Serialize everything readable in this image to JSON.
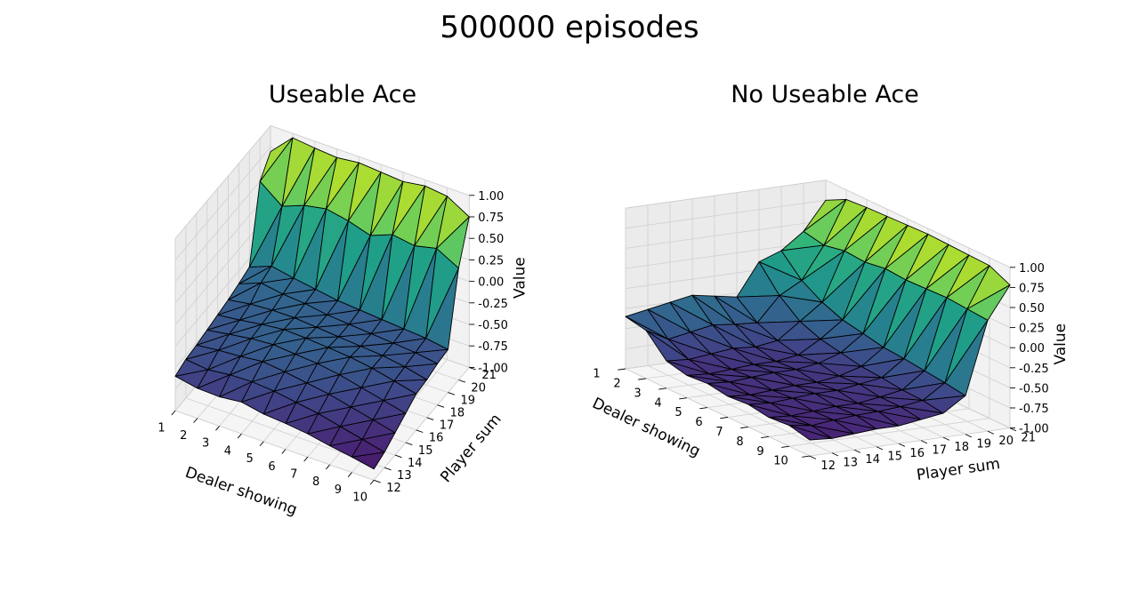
{
  "figure_title": "500000 episodes",
  "chart_data": [
    {
      "type": "surface3d",
      "title": "Useable Ace",
      "xlabel": "Dealer showing",
      "ylabel": "Player sum",
      "zlabel": "Value",
      "x": [
        1,
        2,
        3,
        4,
        5,
        6,
        7,
        8,
        9,
        10
      ],
      "y": [
        12,
        13,
        14,
        15,
        16,
        17,
        18,
        19,
        20,
        21
      ],
      "x_tick_labels": [
        "1",
        "2",
        "3",
        "4",
        "5",
        "6",
        "7",
        "8",
        "9",
        "10"
      ],
      "y_tick_labels": [
        "12",
        "13",
        "14",
        "15",
        "16",
        "17",
        "18",
        "19",
        "20",
        "21"
      ],
      "z_tick_labels": [
        "-1.00",
        "-0.75",
        "-0.50",
        "-0.25",
        "0.00",
        "0.25",
        "0.50",
        "0.75",
        "1.00"
      ],
      "zlim": [
        -1,
        1
      ],
      "colormap": "viridis",
      "z": [
        [
          -0.6,
          -0.65,
          -0.66,
          -0.63,
          -0.68,
          -0.7,
          -0.73,
          -0.78,
          -0.82,
          -0.87
        ],
        [
          -0.55,
          -0.58,
          -0.55,
          -0.54,
          -0.56,
          -0.6,
          -0.64,
          -0.7,
          -0.76,
          -0.82
        ],
        [
          -0.53,
          -0.5,
          -0.48,
          -0.45,
          -0.48,
          -0.52,
          -0.56,
          -0.62,
          -0.68,
          -0.74
        ],
        [
          -0.5,
          -0.46,
          -0.42,
          -0.4,
          -0.42,
          -0.44,
          -0.48,
          -0.54,
          -0.6,
          -0.66
        ],
        [
          -0.47,
          -0.44,
          -0.4,
          -0.37,
          -0.38,
          -0.4,
          -0.42,
          -0.46,
          -0.52,
          -0.58
        ],
        [
          -0.44,
          -0.4,
          -0.38,
          -0.38,
          -0.4,
          -0.42,
          -0.44,
          -0.46,
          -0.5,
          -0.56
        ],
        [
          -0.4,
          -0.3,
          -0.34,
          -0.36,
          -0.4,
          -0.42,
          -0.44,
          -0.46,
          -0.48,
          -0.52
        ],
        [
          -0.35,
          -0.25,
          -0.3,
          -0.34,
          -0.38,
          -0.4,
          -0.42,
          -0.44,
          -0.46,
          -0.5
        ],
        [
          0.5,
          0.3,
          0.4,
          0.45,
          0.4,
          0.32,
          0.42,
          0.38,
          0.44,
          0.3
        ],
        [
          0.7,
          0.95,
          0.92,
          0.9,
          0.93,
          0.91,
          0.89,
          0.93,
          0.9,
          0.75
        ]
      ]
    },
    {
      "type": "surface3d",
      "title": "No Useable Ace",
      "xlabel": "Dealer showing",
      "ylabel": "Player sum",
      "zlabel": "Value",
      "x": [
        1,
        2,
        3,
        4,
        5,
        6,
        7,
        8,
        9,
        10
      ],
      "y": [
        12,
        13,
        14,
        15,
        16,
        17,
        18,
        19,
        20,
        21
      ],
      "x_tick_labels": [
        "1",
        "2",
        "3",
        "4",
        "5",
        "6",
        "7",
        "8",
        "9",
        "10"
      ],
      "y_tick_labels": [
        "12",
        "13",
        "14",
        "15",
        "16",
        "17",
        "18",
        "19",
        "20",
        "21"
      ],
      "z_tick_labels": [
        "-1.00",
        "-0.75",
        "-0.50",
        "-0.25",
        "0.00",
        "0.25",
        "0.50",
        "0.75",
        "1.00"
      ],
      "zlim": [
        -1,
        1
      ],
      "colormap": "viridis",
      "z": [
        [
          -0.35,
          -0.4,
          -0.66,
          -0.72,
          -0.7,
          -0.74,
          -0.72,
          -0.76,
          -0.74,
          -0.8
        ],
        [
          -0.3,
          -0.55,
          -0.68,
          -0.74,
          -0.72,
          -0.76,
          -0.74,
          -0.78,
          -0.78,
          -0.82
        ],
        [
          -0.25,
          -0.5,
          -0.65,
          -0.72,
          -0.7,
          -0.74,
          -0.72,
          -0.76,
          -0.75,
          -0.8
        ],
        [
          -0.2,
          -0.45,
          -0.62,
          -0.7,
          -0.68,
          -0.72,
          -0.7,
          -0.74,
          -0.73,
          -0.78
        ],
        [
          -0.25,
          -0.48,
          -0.64,
          -0.7,
          -0.68,
          -0.72,
          -0.7,
          -0.74,
          -0.72,
          -0.78
        ],
        [
          -0.3,
          -0.5,
          -0.6,
          -0.66,
          -0.64,
          -0.68,
          -0.66,
          -0.7,
          -0.7,
          -0.74
        ],
        [
          0.1,
          -0.2,
          -0.4,
          -0.5,
          -0.55,
          -0.6,
          -0.62,
          -0.65,
          -0.66,
          -0.7
        ],
        [
          0.2,
          -0.05,
          -0.2,
          -0.3,
          -0.35,
          -0.4,
          -0.42,
          -0.45,
          -0.48,
          -0.52
        ],
        [
          0.4,
          0.35,
          0.4,
          0.38,
          0.42,
          0.4,
          0.41,
          0.42,
          0.4,
          0.38
        ],
        [
          0.75,
          0.88,
          0.9,
          0.91,
          0.92,
          0.93,
          0.92,
          0.91,
          0.9,
          0.78
        ]
      ]
    }
  ]
}
